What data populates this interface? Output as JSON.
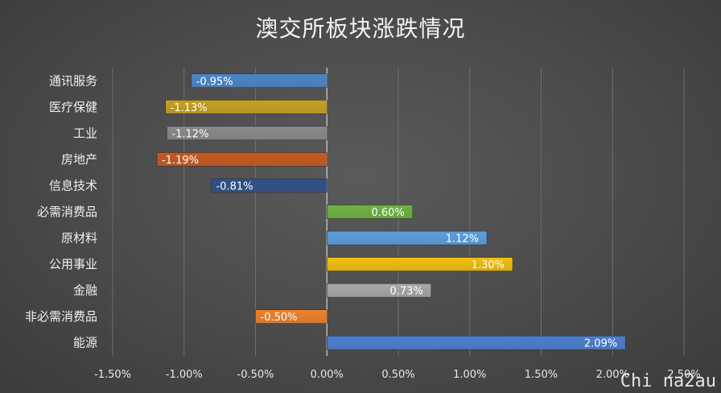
{
  "chart_data": {
    "type": "bar",
    "orientation": "horizontal",
    "title": "澳交所板块涨跌情况",
    "categories": [
      "通讯服务",
      "医疗保健",
      "工业",
      "房地产",
      "信息技术",
      "必需消费品",
      "原材料",
      "公用事业",
      "金融",
      "非必需消费品",
      "能源"
    ],
    "values": [
      -0.95,
      -1.13,
      -1.12,
      -1.19,
      -0.81,
      0.6,
      1.12,
      1.3,
      0.73,
      -0.5,
      2.09
    ],
    "data_labels": [
      "-0.95%",
      "-1.13%",
      "-1.12%",
      "-1.19%",
      "-0.81%",
      "0.60%",
      "1.12%",
      "1.30%",
      "0.73%",
      "-0.50%",
      "2.09%"
    ],
    "colors": [
      "#4a86c8",
      "#c8a020",
      "#8a8a8a",
      "#c8581e",
      "#2f4f88",
      "#6cb33f",
      "#5a9fe0",
      "#f5c00a",
      "#a9a9a9",
      "#f0822a",
      "#4a7fd0"
    ],
    "xlim": [
      -1.5,
      2.5
    ],
    "x_ticks": [
      -1.5,
      -1.0,
      -0.5,
      0.0,
      0.5,
      1.0,
      1.5,
      2.0,
      2.5
    ],
    "x_tick_labels": [
      "-1.50%",
      "-1.00%",
      "-0.50%",
      "0.00%",
      "0.50%",
      "1.00%",
      "1.50%",
      "2.00%",
      "2.50%"
    ],
    "grid": true,
    "legend": false
  },
  "watermark": "Chi na2au"
}
